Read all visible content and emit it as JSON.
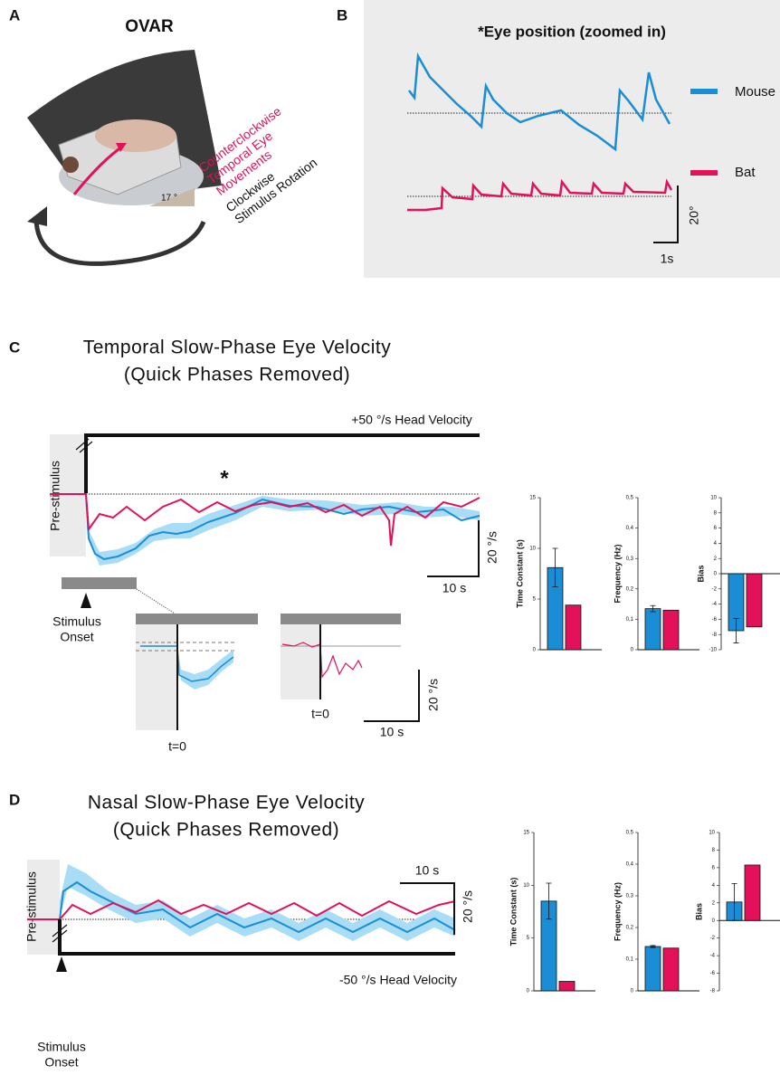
{
  "panels": {
    "a": {
      "letter": "A",
      "title": "OVAR",
      "ccw_label": [
        "Counterclockwise",
        "Temporal Eye",
        "Movements"
      ],
      "cw_label": [
        "Clockwise",
        "Stimulus Rotation"
      ],
      "angle": "17 °"
    },
    "b": {
      "letter": "B",
      "title": "*Eye position (zoomed in)",
      "legend": [
        {
          "name": "Mouse",
          "color": "#1a8dd4"
        },
        {
          "name": "Bat",
          "color": "#e2115a"
        }
      ],
      "scale_y": "20°",
      "scale_x": "1s"
    },
    "c": {
      "letter": "C",
      "title": [
        "Temporal Slow-Phase Eye Velocity",
        "(Quick Phases Removed)"
      ],
      "head_velocity": "+50 °/s Head Velocity",
      "pre_stimulus": "Pre-stimulus",
      "star": "*",
      "scale_y": "20 °/s",
      "scale_x": "10 s",
      "onset": [
        "Stimulus",
        "Onset"
      ],
      "t0_left": "t=0",
      "t0_right": "t=0",
      "inset_scale_y": "20 °/s",
      "inset_scale_x": "10 s"
    },
    "d": {
      "letter": "D",
      "title": [
        "Nasal Slow-Phase Eye Velocity",
        "(Quick Phases Removed)"
      ],
      "head_velocity": "-50 °/s Head Velocity",
      "pre_stimulus": "Pre-stimulus",
      "scale_y": "20 °/s",
      "scale_x": "10 s",
      "onset": [
        "Stimulus",
        "Onset"
      ]
    }
  },
  "chart_data": [
    {
      "type": "bar",
      "ylabel": "Time Constant (s)",
      "values": [
        8.1,
        4.4
      ],
      "errors": [
        1.9,
        null
      ],
      "colors": [
        "#1a8dd4",
        "#e2115a"
      ],
      "ylim": [
        0,
        15
      ],
      "yticks": [
        0,
        5,
        10,
        15
      ]
    },
    {
      "type": "bar",
      "ylabel": "Frequency (Hz)",
      "values": [
        0.135,
        0.13
      ],
      "errors": [
        0.01,
        null
      ],
      "colors": [
        "#1a8dd4",
        "#e2115a"
      ],
      "ylim": [
        0,
        0.5
      ],
      "yticks": [
        0,
        {
          "value": 0.1,
          "label": "0,1"
        },
        {
          "value": 0.2,
          "label": "0,2"
        },
        {
          "value": 0.3,
          "label": "0,3"
        },
        {
          "value": 0.4,
          "label": "0,4"
        },
        {
          "value": 0.5,
          "label": "0,5"
        }
      ]
    },
    {
      "type": "bar",
      "ylabel": "Bias",
      "values": [
        -7.5,
        -7
      ],
      "errors": [
        1.6,
        null
      ],
      "colors": [
        "#1a8dd4",
        "#e2115a"
      ],
      "ylim": [
        -10,
        10
      ],
      "yticks": [
        -10,
        -8,
        -6,
        -4,
        -2,
        0,
        2,
        4,
        6,
        8,
        10
      ]
    },
    {
      "type": "bar",
      "ylabel": "Time Constant (s)",
      "values": [
        8.5,
        0.9
      ],
      "errors": [
        1.7,
        null
      ],
      "colors": [
        "#1a8dd4",
        "#e2115a"
      ],
      "ylim": [
        0,
        15
      ],
      "yticks": [
        0,
        5,
        10,
        15
      ]
    },
    {
      "type": "bar",
      "ylabel": "Frequency (Hz)",
      "values": [
        0.14,
        0.135
      ],
      "errors": [
        0.003,
        null
      ],
      "colors": [
        "#1a8dd4",
        "#e2115a"
      ],
      "ylim": [
        0,
        0.5
      ],
      "yticks": [
        0,
        {
          "value": 0.1,
          "label": "0,1"
        },
        {
          "value": 0.2,
          "label": "0,2"
        },
        {
          "value": 0.3,
          "label": "0,3"
        },
        {
          "value": 0.4,
          "label": "0,4"
        },
        {
          "value": 0.5,
          "label": "0,5"
        }
      ]
    },
    {
      "type": "bar",
      "ylabel": "Bias",
      "values": [
        2.1,
        6.3
      ],
      "errors": [
        2.1,
        null
      ],
      "colors": [
        "#1a8dd4",
        "#e2115a"
      ],
      "ylim": [
        -8,
        10
      ],
      "yticks": [
        -8,
        -6,
        -4,
        -2,
        0,
        2,
        4,
        6,
        8,
        10
      ]
    }
  ]
}
